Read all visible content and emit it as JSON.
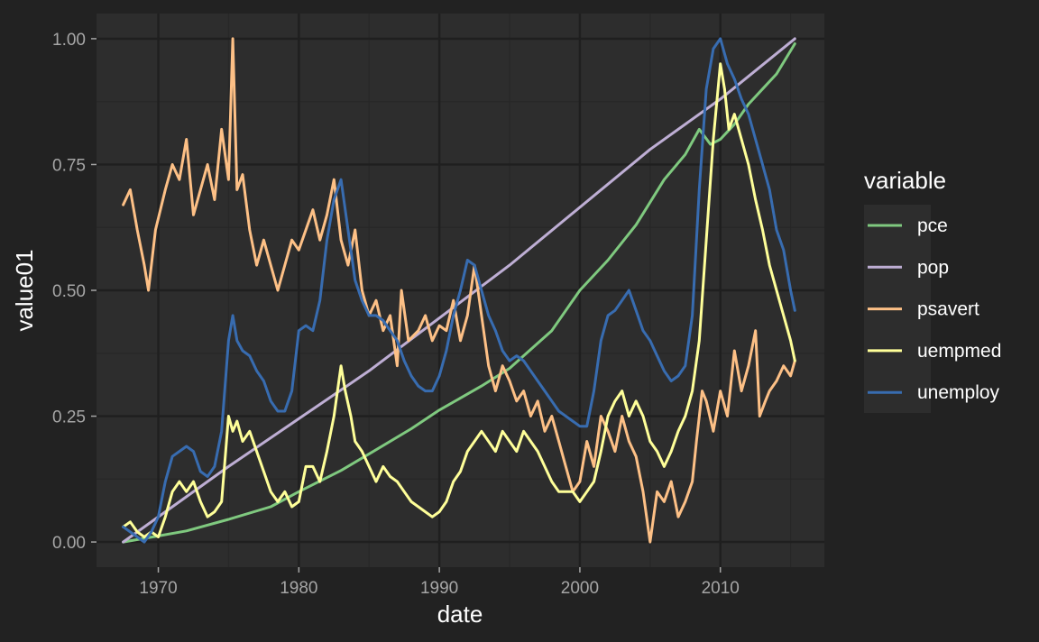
{
  "chart_data": {
    "type": "line",
    "xlabel": "date",
    "ylabel": "value01",
    "xlim": [
      1965.6,
      2017.4
    ],
    "ylim": [
      -0.05,
      1.05
    ],
    "x_ticks": [
      1970,
      1980,
      1990,
      2000,
      2010
    ],
    "x_tick_labels": [
      "1970",
      "1980",
      "1990",
      "2000",
      "2010"
    ],
    "y_ticks": [
      0,
      0.25,
      0.5,
      0.75,
      1.0
    ],
    "y_tick_labels": [
      "0.00",
      "0.25",
      "0.50",
      "0.75",
      "1.00"
    ],
    "grid": true,
    "legend": {
      "title": "variable",
      "position": "right"
    },
    "colors": {
      "background": "#222222",
      "panel": "#2d2d2d",
      "grid_major": "#1f1f1f",
      "grid_minor": "#272727",
      "legend_key_bg": "#2d2d2d"
    },
    "series": [
      {
        "name": "pce",
        "color": "#7fc97f",
        "x": [
          1967.5,
          1970,
          1972,
          1975,
          1978,
          1980,
          1983,
          1985,
          1988,
          1990,
          1993,
          1995,
          1998,
          2000,
          2002,
          2004,
          2006,
          2007.5,
          2008.5,
          2009.3,
          2010,
          2011,
          2012,
          2013,
          2014,
          2015.3
        ],
        "y": [
          0.0,
          0.012,
          0.022,
          0.045,
          0.07,
          0.1,
          0.142,
          0.175,
          0.225,
          0.262,
          0.31,
          0.345,
          0.42,
          0.5,
          0.56,
          0.63,
          0.72,
          0.77,
          0.82,
          0.79,
          0.8,
          0.83,
          0.87,
          0.9,
          0.93,
          0.99
        ]
      },
      {
        "name": "pop",
        "color": "#beaed4",
        "x": [
          1967.5,
          1975,
          1985,
          1995,
          2005,
          2010,
          2015.3
        ],
        "y": [
          0.0,
          0.15,
          0.34,
          0.55,
          0.78,
          0.88,
          1.0
        ]
      },
      {
        "name": "psavert",
        "color": "#fdc086",
        "x": [
          1967.5,
          1968,
          1968.5,
          1969,
          1969.3,
          1969.8,
          1970.5,
          1971,
          1971.5,
          1972,
          1972.5,
          1973,
          1973.5,
          1974,
          1974.5,
          1975,
          1975.3,
          1975.6,
          1976,
          1976.5,
          1977,
          1977.5,
          1978,
          1978.5,
          1979,
          1979.5,
          1980,
          1980.5,
          1981,
          1981.5,
          1982,
          1982.5,
          1983,
          1983.5,
          1984,
          1984.5,
          1985,
          1985.5,
          1986,
          1986.5,
          1987,
          1987.3,
          1987.8,
          1988.5,
          1989,
          1989.5,
          1990,
          1990.5,
          1991,
          1991.5,
          1992,
          1992.5,
          1993,
          1993.5,
          1994,
          1994.5,
          1995,
          1995.5,
          1996,
          1996.5,
          1997,
          1997.5,
          1998,
          1998.5,
          1999,
          1999.5,
          2000,
          2000.5,
          2001,
          2001.5,
          2002,
          2002.5,
          2003,
          2003.5,
          2004,
          2004.5,
          2005,
          2005.5,
          2006,
          2006.5,
          2007,
          2007.5,
          2008,
          2008.3,
          2008.7,
          2009,
          2009.5,
          2010,
          2010.5,
          2011,
          2011.5,
          2012,
          2012.5,
          2012.8,
          2013.2,
          2013.5,
          2014,
          2014.5,
          2015,
          2015.3
        ],
        "y": [
          0.67,
          0.7,
          0.62,
          0.55,
          0.5,
          0.62,
          0.7,
          0.75,
          0.72,
          0.8,
          0.65,
          0.7,
          0.75,
          0.68,
          0.82,
          0.72,
          1.0,
          0.7,
          0.73,
          0.62,
          0.55,
          0.6,
          0.55,
          0.5,
          0.55,
          0.6,
          0.58,
          0.62,
          0.66,
          0.6,
          0.65,
          0.72,
          0.6,
          0.55,
          0.62,
          0.5,
          0.45,
          0.48,
          0.42,
          0.45,
          0.35,
          0.5,
          0.4,
          0.42,
          0.45,
          0.4,
          0.43,
          0.42,
          0.48,
          0.4,
          0.45,
          0.55,
          0.45,
          0.35,
          0.3,
          0.35,
          0.32,
          0.28,
          0.3,
          0.25,
          0.28,
          0.22,
          0.25,
          0.2,
          0.15,
          0.1,
          0.12,
          0.2,
          0.15,
          0.25,
          0.22,
          0.18,
          0.25,
          0.2,
          0.17,
          0.1,
          0.0,
          0.1,
          0.08,
          0.12,
          0.05,
          0.08,
          0.12,
          0.2,
          0.3,
          0.28,
          0.22,
          0.3,
          0.25,
          0.38,
          0.3,
          0.35,
          0.42,
          0.25,
          0.28,
          0.3,
          0.32,
          0.35,
          0.33,
          0.36
        ]
      },
      {
        "name": "uempmed",
        "color": "#ffff99",
        "x": [
          1967.5,
          1968,
          1968.5,
          1969,
          1969.5,
          1970,
          1970.5,
          1971,
          1971.5,
          1972,
          1972.5,
          1973,
          1973.5,
          1974,
          1974.5,
          1975,
          1975.3,
          1975.6,
          1976,
          1976.5,
          1977,
          1977.5,
          1978,
          1978.5,
          1979,
          1979.5,
          1980,
          1980.5,
          1981,
          1981.5,
          1982,
          1982.5,
          1983,
          1983.3,
          1983.7,
          1984,
          1984.5,
          1985,
          1985.5,
          1986,
          1986.5,
          1987,
          1987.5,
          1988,
          1988.5,
          1989,
          1989.5,
          1990,
          1990.5,
          1991,
          1991.5,
          1992,
          1992.5,
          1993,
          1993.5,
          1994,
          1994.5,
          1995,
          1995.5,
          1996,
          1996.5,
          1997,
          1997.5,
          1998,
          1998.5,
          1999,
          1999.5,
          2000,
          2000.5,
          2001,
          2001.5,
          2002,
          2002.5,
          2003,
          2003.5,
          2004,
          2004.5,
          2005,
          2005.5,
          2006,
          2006.5,
          2007,
          2007.5,
          2008,
          2008.5,
          2009,
          2009.5,
          2010,
          2010.3,
          2010.6,
          2011,
          2011.5,
          2012,
          2012.5,
          2013,
          2013.5,
          2014,
          2014.5,
          2015,
          2015.3
        ],
        "y": [
          0.03,
          0.04,
          0.02,
          0.01,
          0.02,
          0.01,
          0.05,
          0.1,
          0.12,
          0.1,
          0.12,
          0.08,
          0.05,
          0.06,
          0.08,
          0.25,
          0.22,
          0.24,
          0.2,
          0.22,
          0.18,
          0.14,
          0.1,
          0.08,
          0.1,
          0.07,
          0.08,
          0.15,
          0.15,
          0.12,
          0.18,
          0.25,
          0.35,
          0.3,
          0.25,
          0.2,
          0.18,
          0.15,
          0.12,
          0.15,
          0.13,
          0.12,
          0.1,
          0.08,
          0.07,
          0.06,
          0.05,
          0.06,
          0.08,
          0.12,
          0.14,
          0.18,
          0.2,
          0.22,
          0.2,
          0.18,
          0.22,
          0.2,
          0.18,
          0.22,
          0.2,
          0.18,
          0.15,
          0.12,
          0.1,
          0.1,
          0.1,
          0.08,
          0.1,
          0.12,
          0.18,
          0.25,
          0.28,
          0.3,
          0.25,
          0.28,
          0.25,
          0.2,
          0.18,
          0.15,
          0.18,
          0.22,
          0.25,
          0.3,
          0.4,
          0.6,
          0.8,
          0.95,
          0.9,
          0.82,
          0.85,
          0.8,
          0.75,
          0.68,
          0.62,
          0.55,
          0.5,
          0.45,
          0.4,
          0.36
        ]
      },
      {
        "name": "unemploy",
        "color": "#386cb0",
        "x": [
          1967.5,
          1968,
          1968.5,
          1969,
          1969.5,
          1970,
          1970.5,
          1971,
          1971.5,
          1972,
          1972.5,
          1973,
          1973.5,
          1974,
          1974.5,
          1975,
          1975.3,
          1975.6,
          1976,
          1976.5,
          1977,
          1977.5,
          1978,
          1978.5,
          1979,
          1979.5,
          1980,
          1980.5,
          1981,
          1981.5,
          1982,
          1982.5,
          1983,
          1983.5,
          1984,
          1984.5,
          1985,
          1985.5,
          1986,
          1986.5,
          1987,
          1987.5,
          1988,
          1988.5,
          1989,
          1989.5,
          1990,
          1990.5,
          1991,
          1991.5,
          1992,
          1992.5,
          1993,
          1993.5,
          1994,
          1994.5,
          1995,
          1995.5,
          1996,
          1996.5,
          1997,
          1997.5,
          1998,
          1998.5,
          1999,
          1999.5,
          2000,
          2000.5,
          2001,
          2001.5,
          2002,
          2002.5,
          2003,
          2003.5,
          2004,
          2004.5,
          2005,
          2005.5,
          2006,
          2006.5,
          2007,
          2007.5,
          2008,
          2008.5,
          2009,
          2009.5,
          2010,
          2010.5,
          2011,
          2011.5,
          2012,
          2012.5,
          2013,
          2013.5,
          2014,
          2014.5,
          2015,
          2015.3
        ],
        "y": [
          0.03,
          0.02,
          0.01,
          0.0,
          0.02,
          0.05,
          0.12,
          0.17,
          0.18,
          0.19,
          0.18,
          0.14,
          0.13,
          0.15,
          0.22,
          0.4,
          0.45,
          0.4,
          0.38,
          0.37,
          0.34,
          0.32,
          0.28,
          0.26,
          0.26,
          0.3,
          0.42,
          0.43,
          0.42,
          0.48,
          0.6,
          0.68,
          0.72,
          0.62,
          0.52,
          0.48,
          0.45,
          0.45,
          0.44,
          0.42,
          0.4,
          0.36,
          0.33,
          0.31,
          0.3,
          0.3,
          0.33,
          0.38,
          0.45,
          0.5,
          0.56,
          0.55,
          0.5,
          0.45,
          0.42,
          0.38,
          0.36,
          0.37,
          0.36,
          0.34,
          0.32,
          0.3,
          0.28,
          0.26,
          0.25,
          0.24,
          0.23,
          0.23,
          0.3,
          0.4,
          0.45,
          0.46,
          0.48,
          0.5,
          0.46,
          0.42,
          0.4,
          0.37,
          0.34,
          0.32,
          0.33,
          0.35,
          0.45,
          0.7,
          0.9,
          0.98,
          1.0,
          0.95,
          0.92,
          0.88,
          0.85,
          0.8,
          0.75,
          0.7,
          0.62,
          0.58,
          0.5,
          0.46
        ]
      }
    ]
  }
}
